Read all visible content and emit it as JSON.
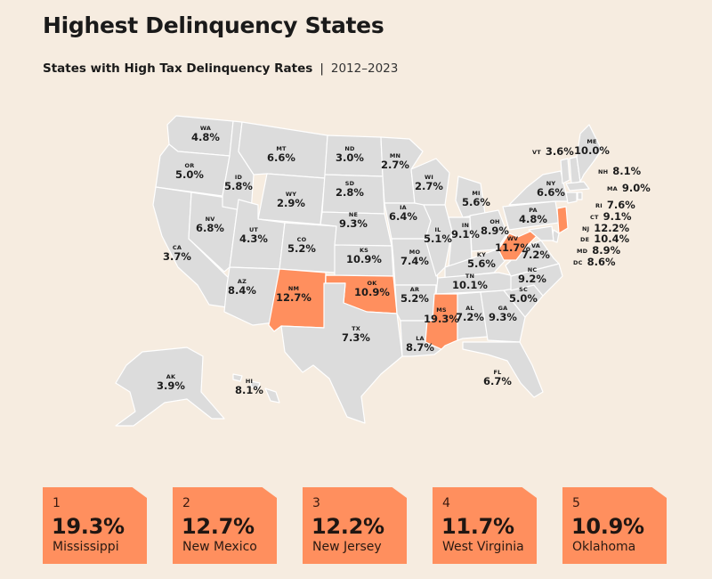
{
  "header": {
    "title": "Highest Delinquency States",
    "subtitle_strong": "States with High Tax Delinquency Rates",
    "separator": "|",
    "years": "2012–2023"
  },
  "colors": {
    "background": "#f6ece0",
    "state_fill": "#dcdcdc",
    "state_border": "#ffffff",
    "highlight": "#ff8f5e"
  },
  "states": {
    "WA": {
      "abbr": "WA",
      "rate": "4.8%"
    },
    "OR": {
      "abbr": "OR",
      "rate": "5.0%"
    },
    "CA": {
      "abbr": "CA",
      "rate": "3.7%"
    },
    "NV": {
      "abbr": "NV",
      "rate": "6.8%"
    },
    "ID": {
      "abbr": "ID",
      "rate": "5.8%"
    },
    "MT": {
      "abbr": "MT",
      "rate": "6.6%"
    },
    "WY": {
      "abbr": "WY",
      "rate": "2.9%"
    },
    "UT": {
      "abbr": "UT",
      "rate": "4.3%"
    },
    "AZ": {
      "abbr": "AZ",
      "rate": "8.4%"
    },
    "CO": {
      "abbr": "CO",
      "rate": "5.2%"
    },
    "NM": {
      "abbr": "NM",
      "rate": "12.7%"
    },
    "ND": {
      "abbr": "ND",
      "rate": "3.0%"
    },
    "SD": {
      "abbr": "SD",
      "rate": "2.8%"
    },
    "NE": {
      "abbr": "NE",
      "rate": "9.3%"
    },
    "KS": {
      "abbr": "KS",
      "rate": "10.9%"
    },
    "OK": {
      "abbr": "OK",
      "rate": "10.9%"
    },
    "TX": {
      "abbr": "TX",
      "rate": "7.3%"
    },
    "MN": {
      "abbr": "MN",
      "rate": "2.7%"
    },
    "IA": {
      "abbr": "IA",
      "rate": "6.4%"
    },
    "MO": {
      "abbr": "MO",
      "rate": "7.4%"
    },
    "AR": {
      "abbr": "AR",
      "rate": "5.2%"
    },
    "LA": {
      "abbr": "LA",
      "rate": "8.7%"
    },
    "WI": {
      "abbr": "WI",
      "rate": "2.7%"
    },
    "IL": {
      "abbr": "IL",
      "rate": "5.1%"
    },
    "MI": {
      "abbr": "MI",
      "rate": "5.6%"
    },
    "IN": {
      "abbr": "IN",
      "rate": "9.1%"
    },
    "OH": {
      "abbr": "OH",
      "rate": "8.9%"
    },
    "KY": {
      "abbr": "KY",
      "rate": "5.6%"
    },
    "TN": {
      "abbr": "TN",
      "rate": "10.1%"
    },
    "MS": {
      "abbr": "MS",
      "rate": "19.3%"
    },
    "AL": {
      "abbr": "AL",
      "rate": "7.2%"
    },
    "GA": {
      "abbr": "GA",
      "rate": "9.3%"
    },
    "FL": {
      "abbr": "FL",
      "rate": "6.7%"
    },
    "SC": {
      "abbr": "SC",
      "rate": "5.0%"
    },
    "NC": {
      "abbr": "NC",
      "rate": "9.2%"
    },
    "VA": {
      "abbr": "VA",
      "rate": "7.2%"
    },
    "WV": {
      "abbr": "WV",
      "rate": "11.7%"
    },
    "PA": {
      "abbr": "PA",
      "rate": "4.8%"
    },
    "NY": {
      "abbr": "NY",
      "rate": "6.6%"
    },
    "VT": {
      "abbr": "VT",
      "rate": "3.6%"
    },
    "ME": {
      "abbr": "ME",
      "rate": "10.0%"
    },
    "NH": {
      "abbr": "NH",
      "rate": "8.1%"
    },
    "MA": {
      "abbr": "MA",
      "rate": "9.0%"
    },
    "RI": {
      "abbr": "RI",
      "rate": "7.6%"
    },
    "CT": {
      "abbr": "CT",
      "rate": "9.1%"
    },
    "NJ": {
      "abbr": "NJ",
      "rate": "12.2%"
    },
    "DE": {
      "abbr": "DE",
      "rate": "10.4%"
    },
    "MD": {
      "abbr": "MD",
      "rate": "8.9%"
    },
    "DC": {
      "abbr": "DC",
      "rate": "8.6%"
    },
    "AK": {
      "abbr": "AK",
      "rate": "3.9%"
    },
    "HI": {
      "abbr": "HI",
      "rate": "8.1%"
    }
  },
  "highlighted_states": [
    "MS",
    "NM",
    "NJ",
    "WV",
    "OK"
  ],
  "top5": [
    {
      "rank": "1",
      "value": "19.3%",
      "state": "Mississippi"
    },
    {
      "rank": "2",
      "value": "12.7%",
      "state": "New Mexico"
    },
    {
      "rank": "3",
      "value": "12.2%",
      "state": "New Jersey"
    },
    {
      "rank": "4",
      "value": "11.7%",
      "state": "West Virginia"
    },
    {
      "rank": "5",
      "value": "10.9%",
      "state": "Oklahoma"
    }
  ]
}
